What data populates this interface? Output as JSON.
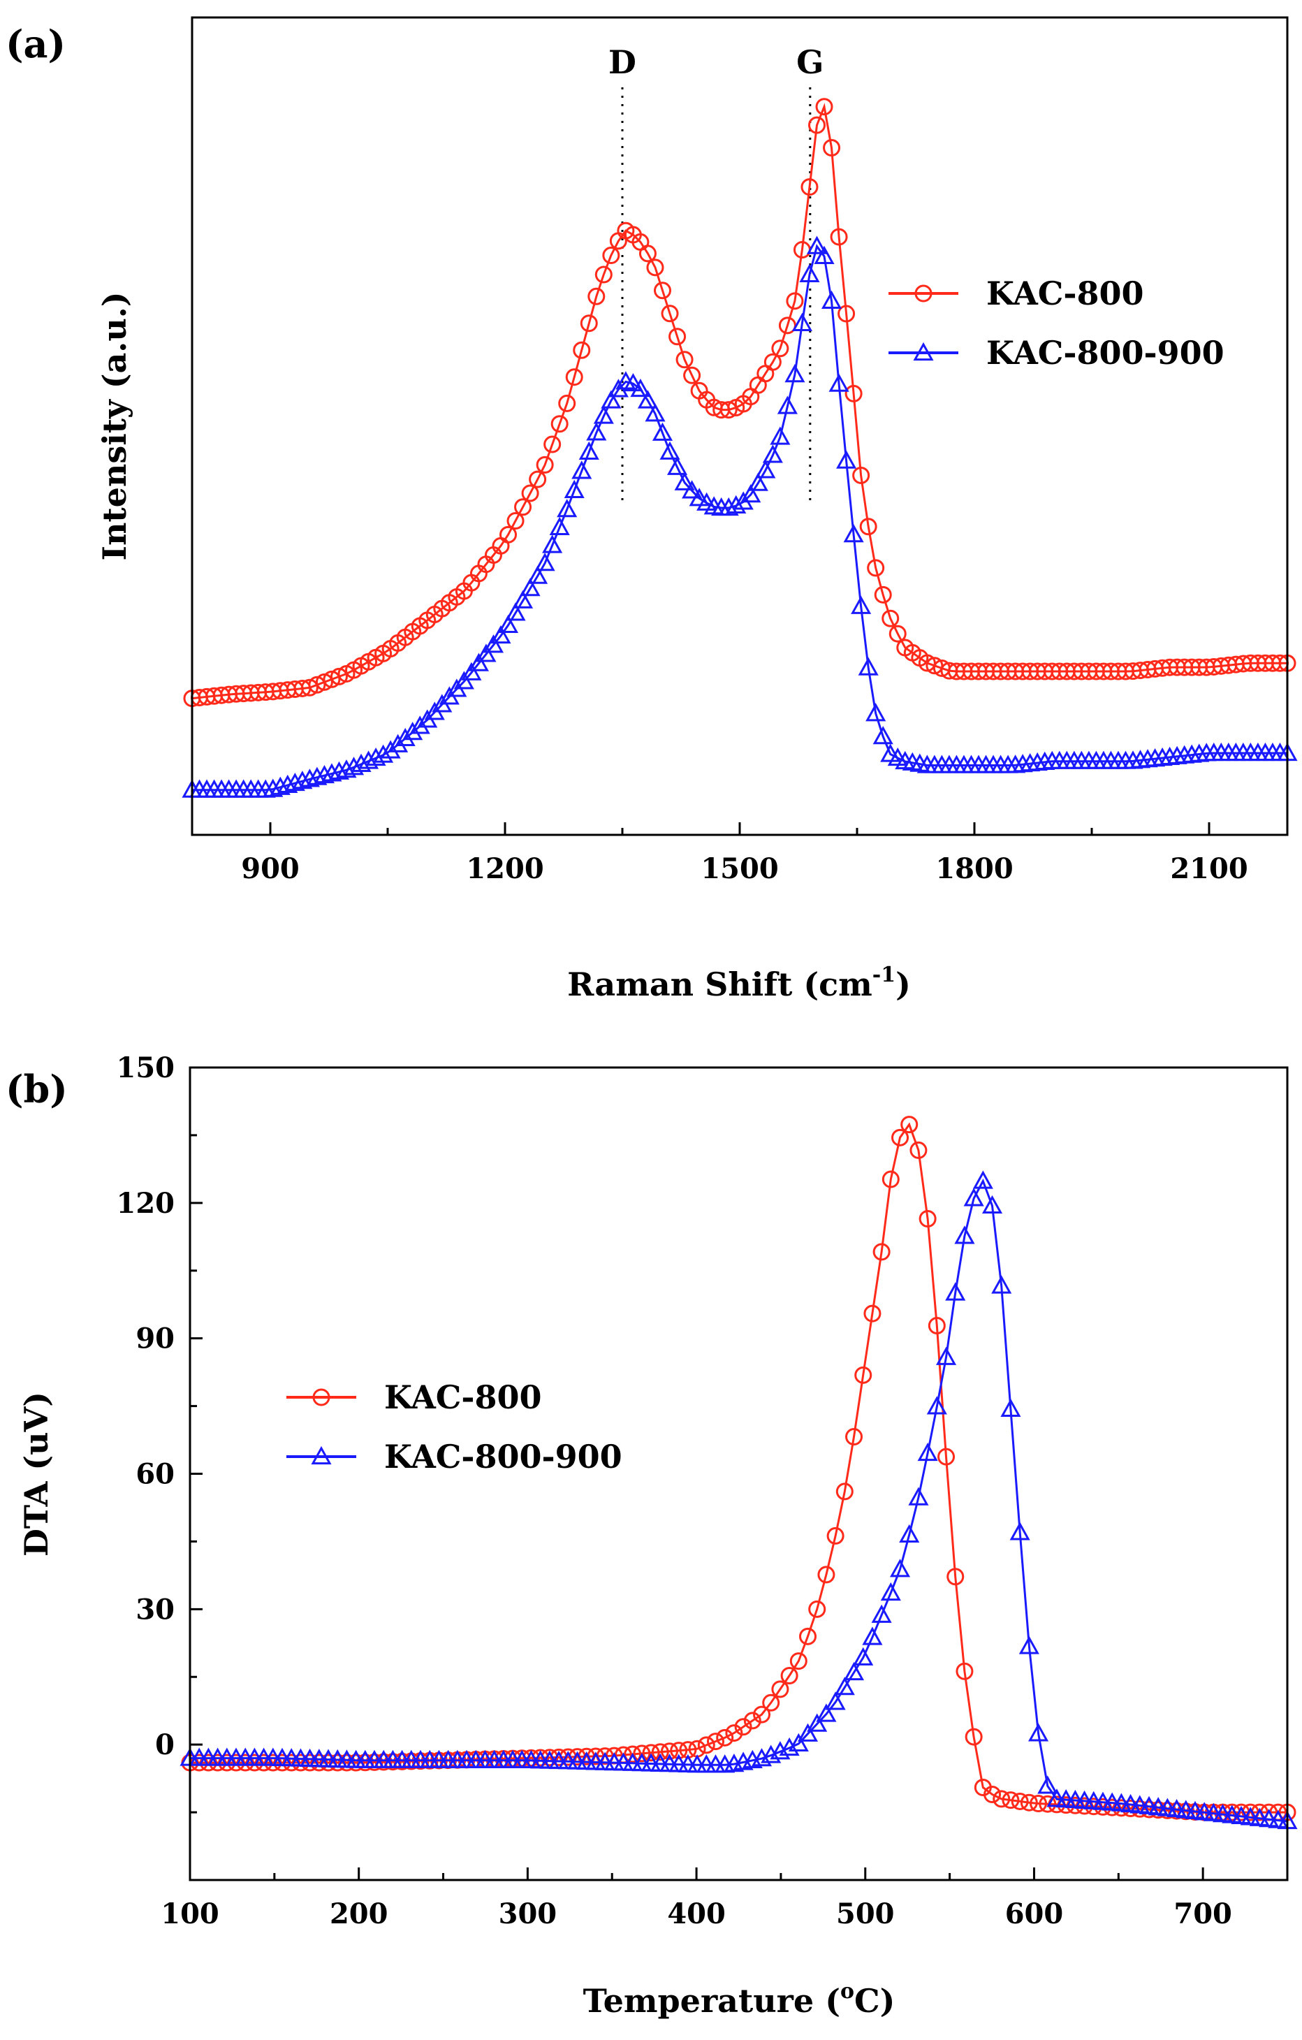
{
  "colors": {
    "red": "#ff2a1a",
    "blue": "#1a1aff",
    "axis": "#000000"
  },
  "chart_data": [
    {
      "type": "line",
      "panel_label": "(a)",
      "xlabel": "Raman Shift (cm",
      "xlabel_sup": "-1",
      "xlabel_tail": ")",
      "ylabel": "Intensity (a.u.)",
      "xlim": [
        800,
        2200
      ],
      "ylim": [
        0,
        1
      ],
      "y_ticks_shown": false,
      "x_ticks": [
        "900",
        "1200",
        "1500",
        "1800",
        "2100"
      ],
      "peaks": [
        {
          "label": "D",
          "x": 1350
        },
        {
          "label": "G",
          "x": 1590
        }
      ],
      "legend_position": "right",
      "series": [
        {
          "name": "KAC-800",
          "color": "#ff2a1a",
          "marker": "circle",
          "x": [
            800,
            850,
            900,
            950,
            1000,
            1050,
            1100,
            1150,
            1200,
            1250,
            1280,
            1300,
            1320,
            1340,
            1355,
            1370,
            1390,
            1410,
            1430,
            1450,
            1470,
            1490,
            1510,
            1530,
            1550,
            1570,
            1585,
            1595,
            1605,
            1615,
            1625,
            1640,
            1655,
            1670,
            1690,
            1710,
            1740,
            1770,
            1800,
            1850,
            1900,
            1950,
            2000,
            2050,
            2100,
            2150,
            2200
          ],
          "y": [
            0.167,
            0.172,
            0.175,
            0.18,
            0.198,
            0.225,
            0.262,
            0.3,
            0.36,
            0.45,
            0.53,
            0.6,
            0.67,
            0.72,
            0.74,
            0.73,
            0.7,
            0.64,
            0.58,
            0.54,
            0.52,
            0.52,
            0.53,
            0.56,
            0.59,
            0.65,
            0.75,
            0.85,
            0.9,
            0.87,
            0.75,
            0.6,
            0.44,
            0.34,
            0.27,
            0.23,
            0.21,
            0.2,
            0.2,
            0.2,
            0.2,
            0.2,
            0.2,
            0.205,
            0.205,
            0.21,
            0.21
          ]
        },
        {
          "name": "KAC-800-900",
          "color": "#1a1aff",
          "marker": "triangle",
          "x": [
            800,
            850,
            900,
            950,
            1000,
            1050,
            1100,
            1150,
            1200,
            1250,
            1280,
            1300,
            1320,
            1340,
            1355,
            1370,
            1390,
            1410,
            1430,
            1450,
            1470,
            1490,
            1510,
            1530,
            1550,
            1570,
            1585,
            1595,
            1605,
            1615,
            1625,
            1640,
            1655,
            1670,
            1690,
            1710,
            1740,
            1770,
            1800,
            1850,
            1900,
            1950,
            2000,
            2050,
            2100,
            2150,
            2200
          ],
          "y": [
            0.055,
            0.055,
            0.055,
            0.068,
            0.08,
            0.1,
            0.14,
            0.19,
            0.25,
            0.33,
            0.4,
            0.45,
            0.5,
            0.54,
            0.555,
            0.55,
            0.52,
            0.47,
            0.43,
            0.41,
            0.4,
            0.4,
            0.41,
            0.44,
            0.48,
            0.56,
            0.66,
            0.72,
            0.72,
            0.68,
            0.57,
            0.42,
            0.28,
            0.16,
            0.1,
            0.09,
            0.085,
            0.085,
            0.085,
            0.085,
            0.09,
            0.09,
            0.09,
            0.095,
            0.1,
            0.1,
            0.1
          ]
        }
      ]
    },
    {
      "type": "line",
      "panel_label": "(b)",
      "xlabel": "Temperature (",
      "xlabel_sup": "o",
      "xlabel_tail": "C)",
      "ylabel": "DTA (uV)",
      "xlim": [
        100,
        750
      ],
      "ylim": [
        -30,
        150
      ],
      "x_ticks": [
        "100",
        "200",
        "300",
        "400",
        "500",
        "600",
        "700"
      ],
      "y_ticks": [
        "0",
        "30",
        "60",
        "90",
        "120",
        "150"
      ],
      "legend_position": "left",
      "series": [
        {
          "name": "KAC-800",
          "color": "#ff2a1a",
          "marker": "circle",
          "x": [
            100,
            150,
            200,
            250,
            300,
            350,
            400,
            420,
            440,
            460,
            470,
            480,
            490,
            500,
            510,
            515,
            520,
            525,
            530,
            535,
            540,
            545,
            550,
            555,
            560,
            565,
            570,
            580,
            600,
            650,
            700,
            750
          ],
          "y": [
            -4,
            -4,
            -4,
            -3.5,
            -3,
            -2.5,
            -1,
            2,
            7,
            18,
            28,
            42,
            60,
            85,
            110,
            125,
            134,
            138,
            135,
            124,
            105,
            80,
            52,
            30,
            12,
            0,
            -10,
            -12,
            -13,
            -14,
            -15,
            -15
          ]
        },
        {
          "name": "KAC-800-900",
          "color": "#1a1aff",
          "marker": "triangle",
          "x": [
            100,
            150,
            200,
            250,
            300,
            350,
            400,
            420,
            440,
            460,
            480,
            500,
            520,
            530,
            540,
            550,
            555,
            560,
            565,
            570,
            575,
            580,
            585,
            590,
            595,
            600,
            605,
            610,
            650,
            700,
            750
          ],
          "y": [
            -3,
            -3,
            -3.5,
            -3.5,
            -3.5,
            -4,
            -4.5,
            -4.5,
            -3,
            0,
            8,
            20,
            38,
            52,
            70,
            90,
            105,
            115,
            122,
            125,
            120,
            105,
            80,
            55,
            30,
            10,
            -5,
            -12,
            -13,
            -15,
            -17
          ]
        }
      ]
    }
  ]
}
